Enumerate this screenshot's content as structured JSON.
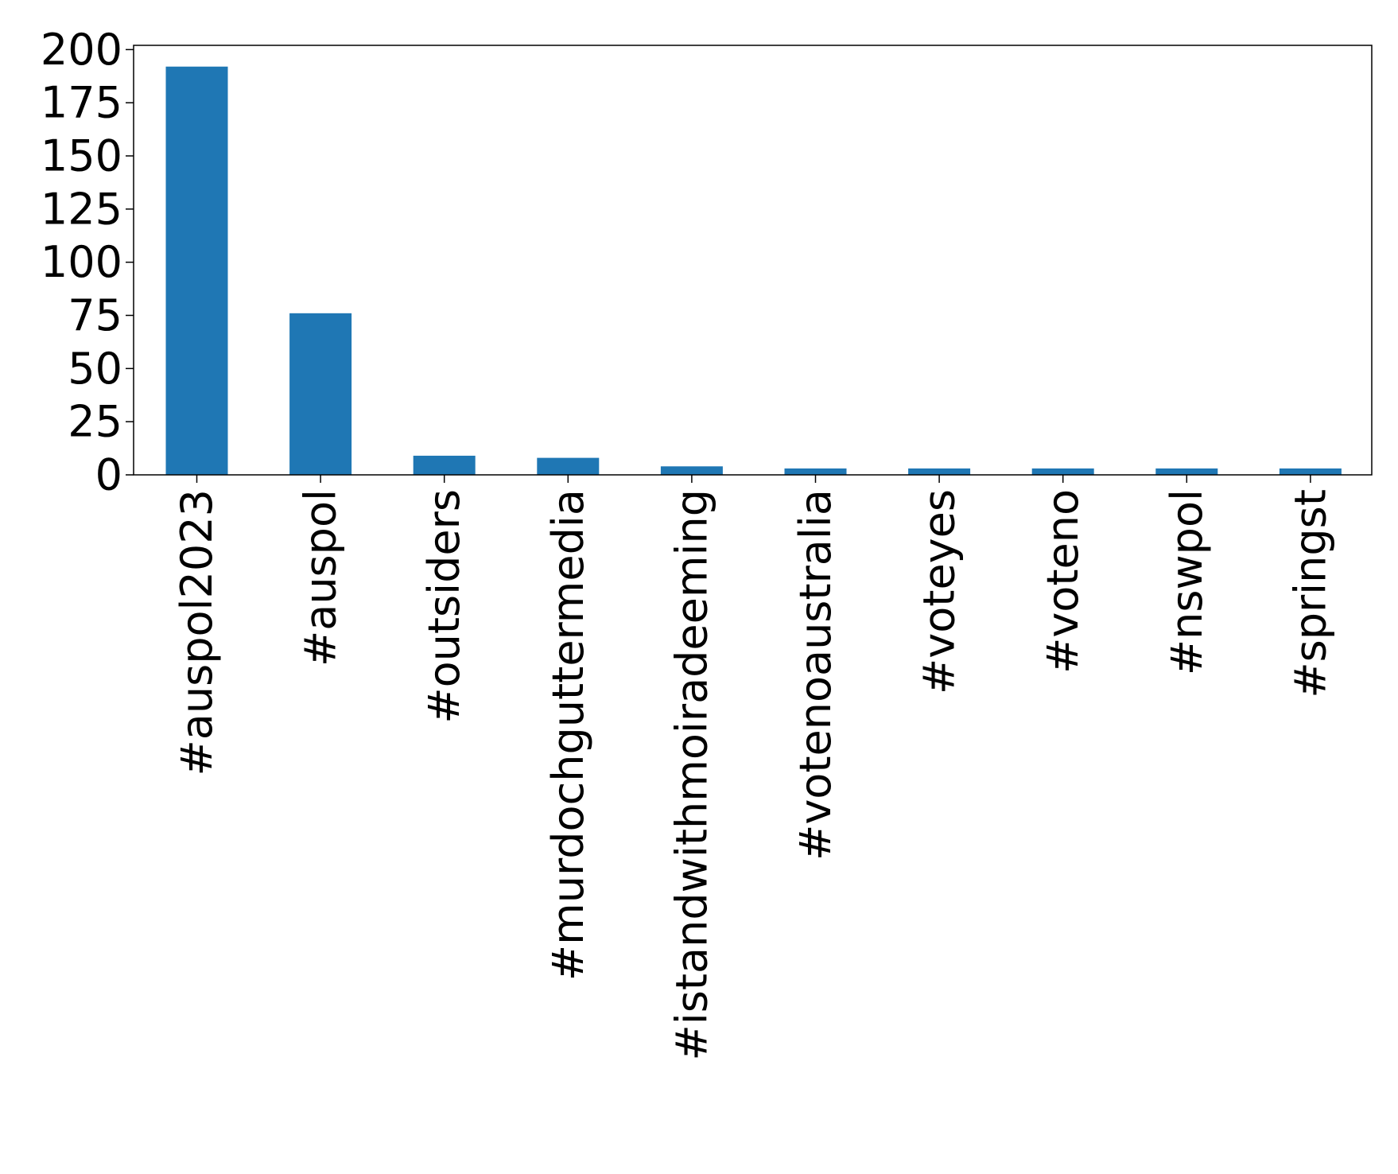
{
  "chart_data": {
    "type": "bar",
    "title": "",
    "xlabel": "",
    "ylabel": "",
    "categories": [
      "#auspol2023",
      "#auspol",
      "#outsiders",
      "#murdochguttermedia",
      "#istandwithmoiradeeming",
      "#votenoaustralia",
      "#voteyes",
      "#voteno",
      "#nswpol",
      "#springst"
    ],
    "values": [
      192,
      76,
      9,
      8,
      4,
      3,
      3,
      3,
      3,
      3
    ],
    "ylim": [
      0,
      202
    ],
    "yticks": [
      0,
      25,
      50,
      75,
      100,
      125,
      150,
      175,
      200
    ],
    "ytick_labels": [
      "0",
      "25",
      "50",
      "75",
      "100",
      "125",
      "150",
      "175",
      "200"
    ],
    "bar_color": "#1f77b4",
    "grid": false,
    "legend": "none"
  }
}
